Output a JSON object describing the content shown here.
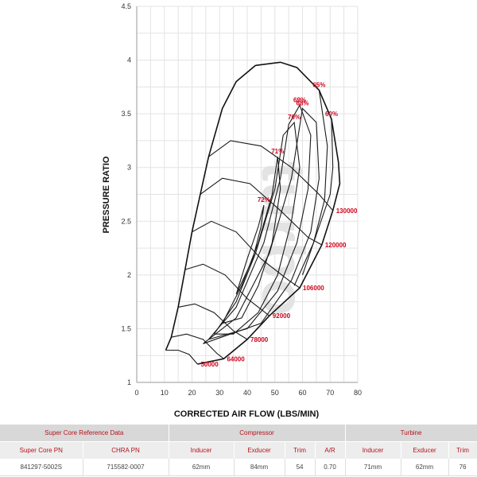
{
  "chart_data": {
    "type": "compressor-map",
    "xlabel": "CORRECTED AIR FLOW (LBS/MIN)",
    "ylabel": "PRESSURE RATIO",
    "xlim": [
      0,
      80
    ],
    "ylim": [
      1,
      4.5
    ],
    "x_ticks": [
      "0",
      "10",
      "20",
      "30",
      "40",
      "50",
      "60",
      "70",
      "80"
    ],
    "y_ticks": [
      "1",
      "1.5",
      "2",
      "2.5",
      "3",
      "3.5",
      "4",
      "4.5"
    ],
    "grid": true,
    "surge_line": [
      [
        10.5,
        1.3
      ],
      [
        12.5,
        1.42
      ],
      [
        15,
        1.7
      ],
      [
        17.5,
        2.05
      ],
      [
        20,
        2.4
      ],
      [
        23,
        2.75
      ],
      [
        26,
        3.1
      ],
      [
        31,
        3.55
      ],
      [
        36,
        3.8
      ],
      [
        43,
        3.95
      ]
    ],
    "speed_lines": [
      {
        "label": "50000",
        "points": [
          [
            10.5,
            1.3
          ],
          [
            15,
            1.3
          ],
          [
            19,
            1.26
          ],
          [
            22,
            1.17
          ]
        ]
      },
      {
        "label": "64000",
        "points": [
          [
            12.5,
            1.42
          ],
          [
            18,
            1.45
          ],
          [
            24,
            1.4
          ],
          [
            29,
            1.27
          ],
          [
            31.5,
            1.22
          ]
        ]
      },
      {
        "label": "78000",
        "points": [
          [
            15,
            1.7
          ],
          [
            21,
            1.73
          ],
          [
            28,
            1.65
          ],
          [
            35,
            1.48
          ],
          [
            40,
            1.4
          ]
        ]
      },
      {
        "label": "92000",
        "points": [
          [
            17.5,
            2.05
          ],
          [
            24,
            2.1
          ],
          [
            32,
            2.0
          ],
          [
            40,
            1.78
          ],
          [
            48,
            1.62
          ]
        ]
      },
      {
        "label": "106000",
        "points": [
          [
            20,
            2.4
          ],
          [
            27,
            2.5
          ],
          [
            36,
            2.4
          ],
          [
            45,
            2.15
          ],
          [
            55,
            1.95
          ],
          [
            59,
            1.88
          ]
        ]
      },
      {
        "label": "120000",
        "points": [
          [
            23,
            2.75
          ],
          [
            31,
            2.9
          ],
          [
            41,
            2.85
          ],
          [
            52,
            2.6
          ],
          [
            62,
            2.35
          ],
          [
            67,
            2.28
          ]
        ]
      },
      {
        "label": "130000",
        "points": [
          [
            26,
            3.1
          ],
          [
            34,
            3.25
          ],
          [
            45,
            3.2
          ],
          [
            56,
            3.0
          ],
          [
            66,
            2.75
          ],
          [
            71,
            2.6
          ]
        ]
      }
    ],
    "choke_line": [
      [
        22,
        1.17
      ],
      [
        31.5,
        1.22
      ],
      [
        40,
        1.4
      ],
      [
        48,
        1.62
      ],
      [
        59,
        1.88
      ],
      [
        67,
        2.28
      ],
      [
        71,
        2.6
      ],
      [
        73.5,
        2.85
      ],
      [
        73,
        3.05
      ],
      [
        70.5,
        3.45
      ],
      [
        66,
        3.72
      ],
      [
        58,
        3.93
      ],
      [
        52,
        3.98
      ],
      [
        43,
        3.95
      ]
    ],
    "efficiency_islands": [
      {
        "label": "72%",
        "points": [
          [
            36,
            1.82
          ],
          [
            42,
            2.15
          ],
          [
            45,
            2.45
          ],
          [
            46,
            2.65
          ],
          [
            44,
            2.45
          ],
          [
            40,
            2.15
          ],
          [
            36,
            1.82
          ]
        ]
      },
      {
        "label": "71%",
        "points": [
          [
            31,
            1.55
          ],
          [
            38,
            1.9
          ],
          [
            44,
            2.3
          ],
          [
            49,
            2.75
          ],
          [
            51,
            3.1
          ],
          [
            52,
            2.8
          ],
          [
            49,
            2.3
          ],
          [
            44,
            1.9
          ],
          [
            38,
            1.6
          ],
          [
            31,
            1.55
          ]
        ]
      },
      {
        "label": "70%",
        "points": [
          [
            28,
            1.45
          ],
          [
            36,
            1.75
          ],
          [
            43,
            2.2
          ],
          [
            50,
            2.8
          ],
          [
            53,
            3.3
          ],
          [
            57,
            3.42
          ],
          [
            59,
            3.0
          ],
          [
            56,
            2.5
          ],
          [
            51,
            2.0
          ],
          [
            44,
            1.65
          ],
          [
            35,
            1.45
          ],
          [
            28,
            1.45
          ]
        ]
      },
      {
        "label": "69%",
        "points": [
          [
            26,
            1.4
          ],
          [
            36,
            1.7
          ],
          [
            46,
            2.3
          ],
          [
            52,
            2.9
          ],
          [
            55,
            3.4
          ],
          [
            59,
            3.58
          ],
          [
            63,
            3.3
          ],
          [
            62,
            2.8
          ],
          [
            58,
            2.3
          ],
          [
            51,
            1.85
          ],
          [
            40,
            1.5
          ],
          [
            26,
            1.4
          ]
        ]
      },
      {
        "label": "68%",
        "points": [
          [
            24,
            1.36
          ],
          [
            36,
            1.6
          ],
          [
            48,
            2.2
          ],
          [
            56,
            2.9
          ],
          [
            60,
            3.55
          ],
          [
            65,
            3.42
          ],
          [
            66,
            2.9
          ],
          [
            63,
            2.4
          ],
          [
            56,
            1.95
          ],
          [
            45,
            1.55
          ],
          [
            24,
            1.36
          ]
        ]
      },
      {
        "label": "65%",
        "points": [
          [
            66,
            3.72
          ],
          [
            69,
            3.2
          ],
          [
            68,
            2.7
          ],
          [
            64,
            2.3
          ],
          [
            57,
            1.9
          ]
        ]
      },
      {
        "label": "60%",
        "points": [
          [
            70.5,
            3.45
          ],
          [
            71,
            3.0
          ],
          [
            70,
            2.75
          ],
          [
            66,
            2.45
          ],
          [
            60,
            2.0
          ]
        ]
      }
    ],
    "watermark": "turbo"
  },
  "reference_table": {
    "headers": {
      "super_core_group": "Super Core Reference Data",
      "compressor_group": "Compressor",
      "turbine_group": "Turbine"
    },
    "columns": [
      "Super Core PN",
      "CHRA PN",
      "Inducer",
      "Exducer",
      "Trim",
      "A/R",
      "Inducer",
      "Exducer",
      "Trim"
    ],
    "row": [
      "841297-5002S",
      "715582-0007",
      "62mm",
      "84mm",
      "54",
      "0.70",
      "71mm",
      "62mm",
      "76"
    ]
  },
  "colors": {
    "label_red": "#d0021b",
    "table_header_bg": "#d8d8d8",
    "table_subheader_bg": "#ededed",
    "table_text_red": "#b5121b"
  }
}
